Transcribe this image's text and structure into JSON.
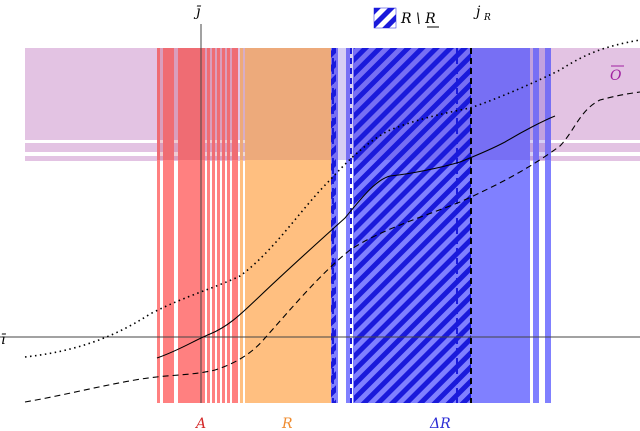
{
  "labels": {
    "j_bar": "j̄",
    "j_R": "j",
    "j_R_sub": "R",
    "i_bar": "ī",
    "O_bar": "O",
    "A": "A",
    "R": "R",
    "delta_R": "ΔR",
    "legend_text": "R \\ R"
  },
  "colors": {
    "purple_band": "#e3c3e3",
    "red": "#ff8080",
    "red_dark": "#e0607a",
    "orange": "#ffbf80",
    "orange_dark": "#e39a7e",
    "blue": "#8080ff",
    "blue_dark": "#7a62e0",
    "hatch_blue": "#1a1adb",
    "label_A": "#d42a2a",
    "label_R": "#ef8c30",
    "label_dR": "#2a2ad4",
    "label_O": "#a020a0"
  }
}
